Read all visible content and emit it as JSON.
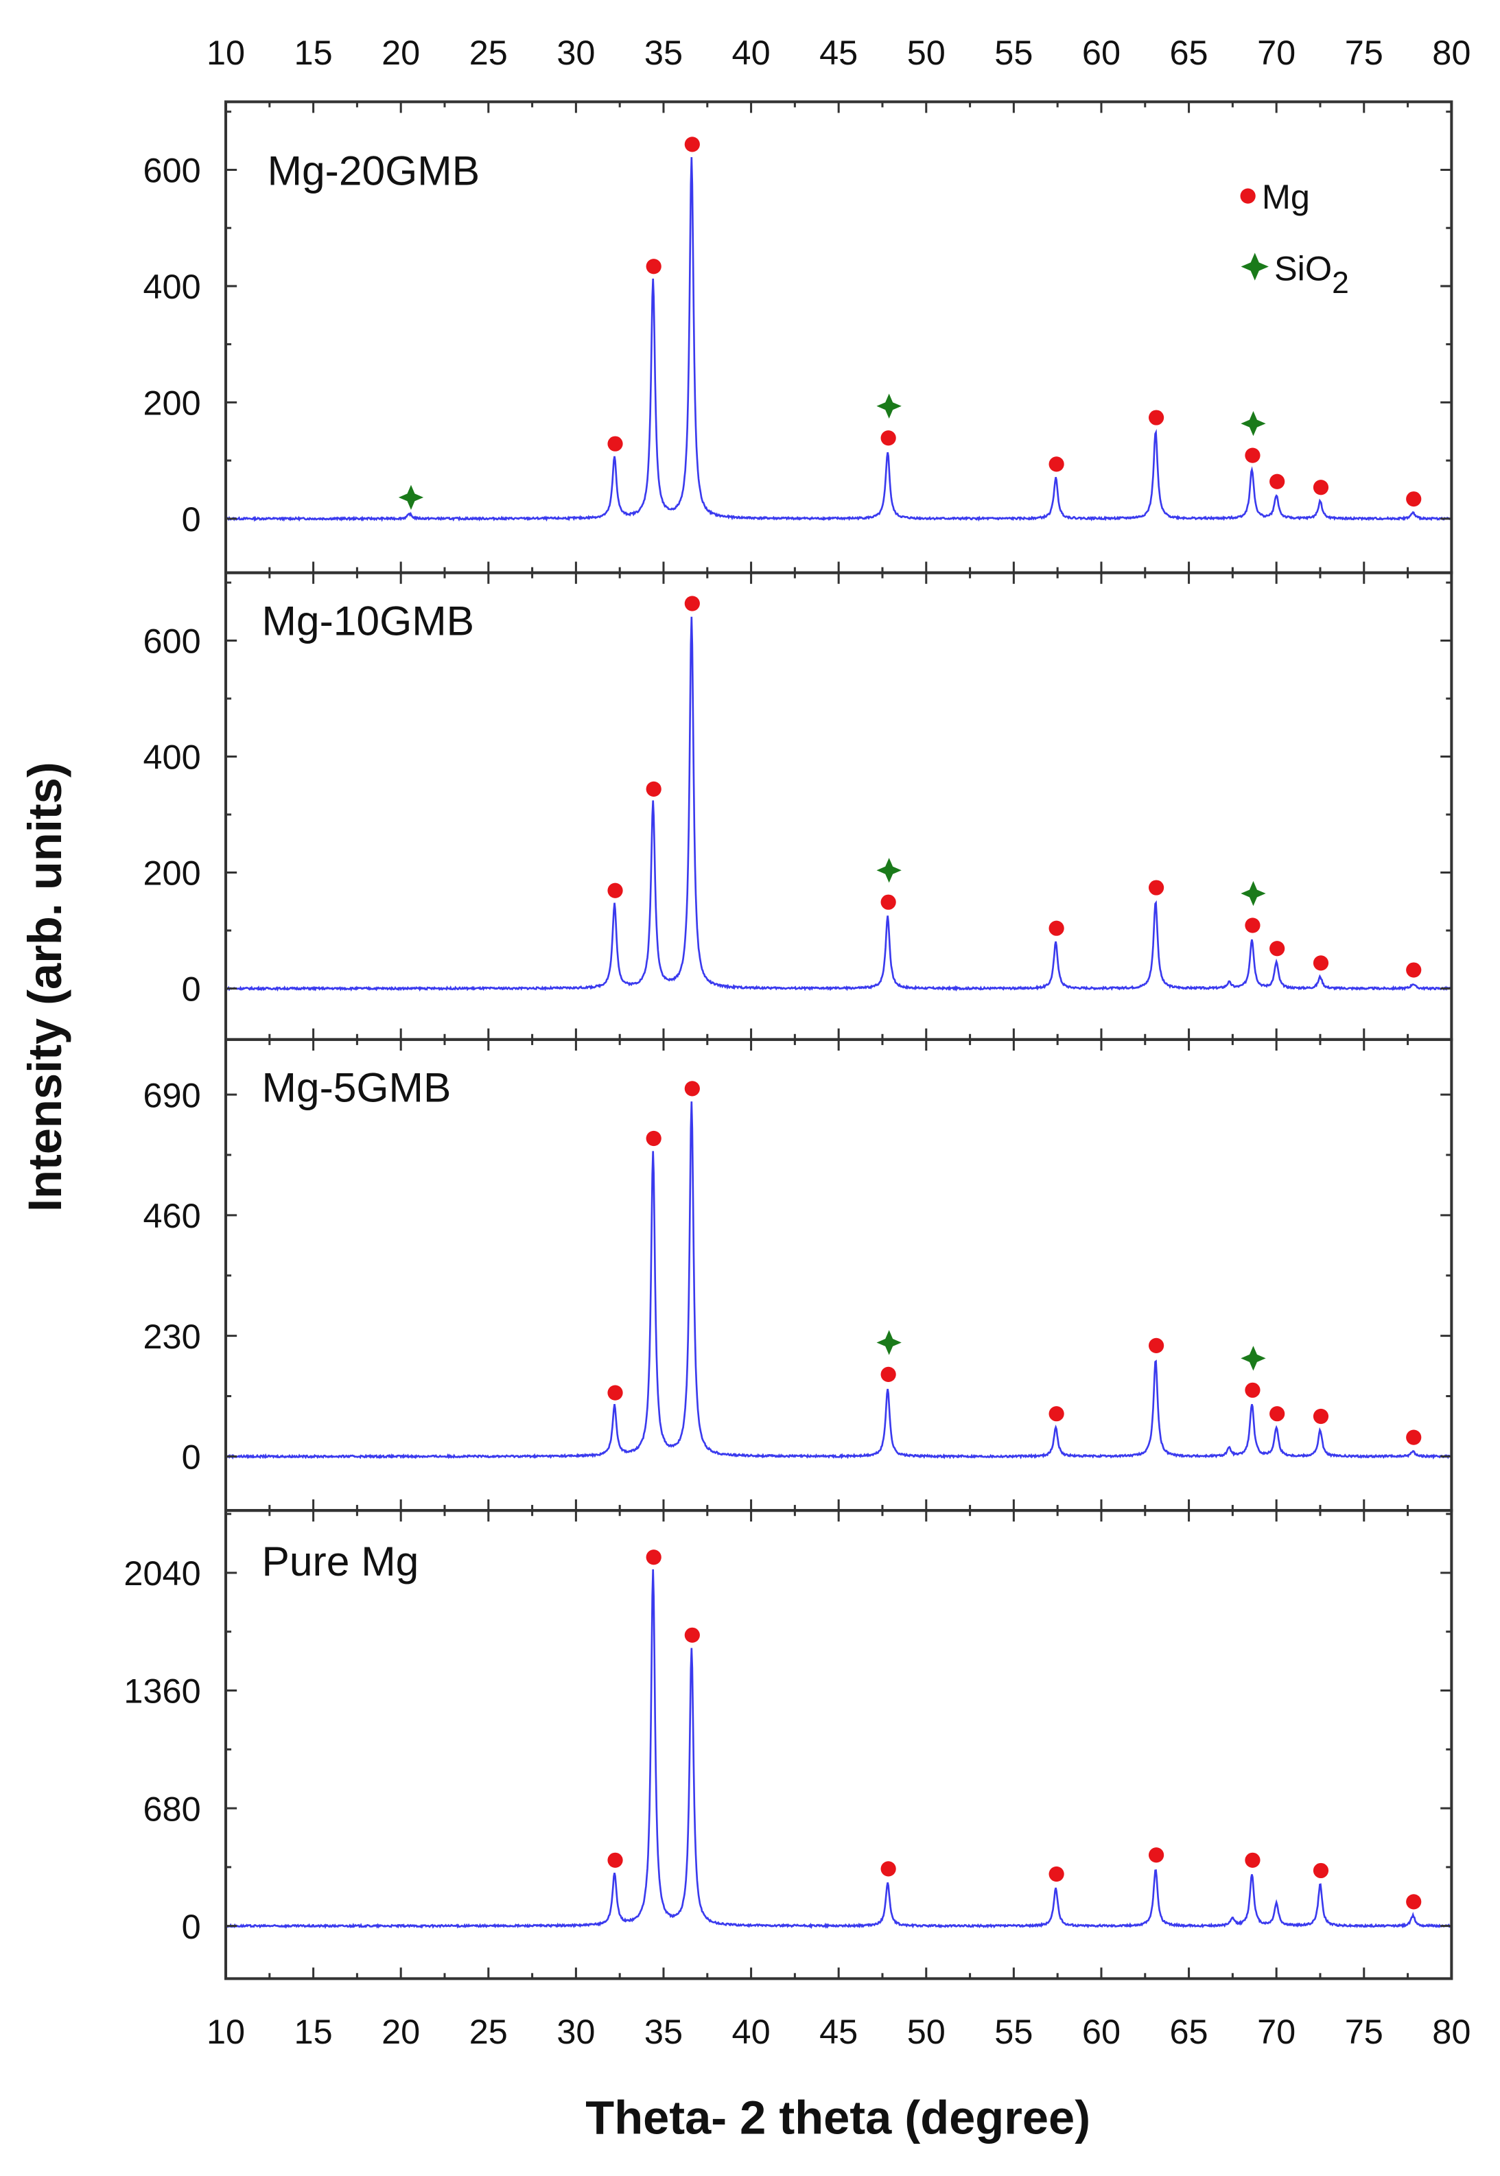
{
  "chart_data": {
    "type": "line",
    "xlabel": "Theta- 2 theta (degree)",
    "ylabel": "Intensity (arb. units)",
    "xlim": [
      10,
      80
    ],
    "xticks": [
      10,
      15,
      20,
      25,
      30,
      35,
      40,
      45,
      50,
      55,
      60,
      65,
      70,
      75,
      80
    ],
    "legend": {
      "placement": "top-right of top panel",
      "entries": [
        {
          "label": "Mg",
          "marker": "circle",
          "color": "#e8141a"
        },
        {
          "label": "SiO",
          "subscript": "2",
          "marker": "star",
          "color": "#1a7a1a"
        }
      ]
    },
    "line_color": "#3a3aee",
    "panels": [
      {
        "name": "Mg-20GMB",
        "ylim": [
          -93,
          717
        ],
        "yticks": [
          0,
          200,
          400,
          600
        ],
        "peaks": [
          {
            "x": 20.5,
            "y": 8,
            "phase": "SiO2"
          },
          {
            "x": 32.2,
            "y": 105,
            "phase": "Mg"
          },
          {
            "x": 34.4,
            "y": 410,
            "phase": "Mg"
          },
          {
            "x": 36.6,
            "y": 620,
            "phase": "Mg"
          },
          {
            "x": 47.8,
            "y": 115,
            "phase": "Mg+SiO2"
          },
          {
            "x": 57.4,
            "y": 70,
            "phase": "Mg"
          },
          {
            "x": 63.1,
            "y": 150,
            "phase": "Mg"
          },
          {
            "x": 68.6,
            "y": 85,
            "phase": "Mg+SiO2"
          },
          {
            "x": 70.0,
            "y": 40,
            "phase": "Mg"
          },
          {
            "x": 72.5,
            "y": 30,
            "phase": "Mg"
          },
          {
            "x": 77.8,
            "y": 10,
            "phase": "Mg"
          }
        ]
      },
      {
        "name": "Mg-10GMB",
        "ylim": [
          -88,
          717
        ],
        "yticks": [
          0,
          200,
          400,
          600
        ],
        "peaks": [
          {
            "x": 32.2,
            "y": 145,
            "phase": "Mg"
          },
          {
            "x": 34.4,
            "y": 320,
            "phase": "Mg"
          },
          {
            "x": 36.6,
            "y": 640,
            "phase": "Mg"
          },
          {
            "x": 47.8,
            "y": 125,
            "phase": "Mg+SiO2"
          },
          {
            "x": 57.4,
            "y": 80,
            "phase": "Mg"
          },
          {
            "x": 63.1,
            "y": 150,
            "phase": "Mg"
          },
          {
            "x": 67.3,
            "y": 10,
            "phase": ""
          },
          {
            "x": 68.6,
            "y": 85,
            "phase": "Mg+SiO2"
          },
          {
            "x": 70.0,
            "y": 45,
            "phase": "Mg"
          },
          {
            "x": 72.5,
            "y": 20,
            "phase": "Mg"
          },
          {
            "x": 77.8,
            "y": 8,
            "phase": "Mg"
          }
        ]
      },
      {
        "name": "Mg-5GMB",
        "ylim": [
          -103,
          795
        ],
        "yticks": [
          0,
          230,
          460,
          690
        ],
        "peaks": [
          {
            "x": 32.2,
            "y": 95,
            "phase": "Mg"
          },
          {
            "x": 34.4,
            "y": 580,
            "phase": "Mg"
          },
          {
            "x": 36.6,
            "y": 675,
            "phase": "Mg"
          },
          {
            "x": 47.8,
            "y": 130,
            "phase": "Mg+SiO2"
          },
          {
            "x": 57.4,
            "y": 55,
            "phase": "Mg"
          },
          {
            "x": 63.1,
            "y": 185,
            "phase": "Mg"
          },
          {
            "x": 67.3,
            "y": 15,
            "phase": ""
          },
          {
            "x": 68.6,
            "y": 100,
            "phase": "Mg+SiO2"
          },
          {
            "x": 70.0,
            "y": 55,
            "phase": "Mg"
          },
          {
            "x": 72.5,
            "y": 50,
            "phase": "Mg"
          },
          {
            "x": 77.8,
            "y": 10,
            "phase": "Mg"
          }
        ]
      },
      {
        "name": "Pure Mg",
        "ylim": [
          -304,
          2400
        ],
        "yticks": [
          0,
          680,
          1360,
          2040
        ],
        "peaks": [
          {
            "x": 32.2,
            "y": 300,
            "phase": "Mg"
          },
          {
            "x": 34.4,
            "y": 2050,
            "phase": "Mg"
          },
          {
            "x": 36.6,
            "y": 1600,
            "phase": "Mg"
          },
          {
            "x": 47.8,
            "y": 250,
            "phase": "Mg"
          },
          {
            "x": 57.4,
            "y": 220,
            "phase": "Mg"
          },
          {
            "x": 63.1,
            "y": 330,
            "phase": "Mg"
          },
          {
            "x": 67.5,
            "y": 40,
            "phase": ""
          },
          {
            "x": 68.6,
            "y": 300,
            "phase": "Mg"
          },
          {
            "x": 70.0,
            "y": 130,
            "phase": ""
          },
          {
            "x": 72.5,
            "y": 240,
            "phase": "Mg"
          },
          {
            "x": 77.8,
            "y": 60,
            "phase": "Mg"
          }
        ]
      }
    ]
  }
}
